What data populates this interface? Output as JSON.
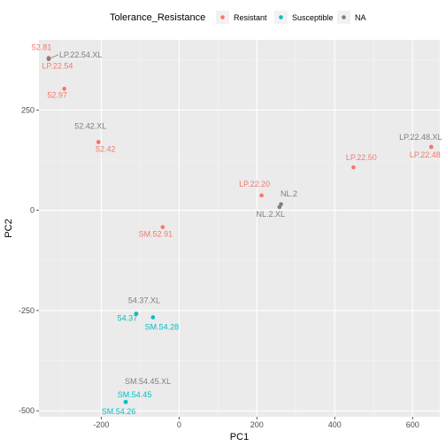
{
  "chart_data": {
    "type": "scatter",
    "title": "",
    "xlabel": "PC1",
    "ylabel": "PC2",
    "xlim": [
      -360,
      670
    ],
    "ylim": [
      -515,
      425
    ],
    "x_ticks": [
      -200,
      0,
      200,
      400,
      600
    ],
    "x_tick_labels": [
      "-200",
      "0",
      "200",
      "400",
      "600"
    ],
    "y_ticks": [
      -500,
      -250,
      0,
      250
    ],
    "y_tick_labels": [
      "-500",
      "-250",
      "0",
      "250"
    ],
    "grid": true,
    "legend": {
      "title": "Tolerance_Resistance",
      "position": "top",
      "entries": [
        {
          "label": "Resistant",
          "color": "#F8766D"
        },
        {
          "label": "Susceptible",
          "color": "#00BFC4"
        },
        {
          "label": "NA",
          "color": "#7F7F7F"
        }
      ]
    },
    "points": [
      {
        "label": "52.81",
        "group": "Resistant",
        "x": -335,
        "y": 380
      },
      {
        "label": "LP.22.54",
        "group": "Resistant",
        "x": -335,
        "y": 380
      },
      {
        "label": "LP.22.54.XL",
        "group": "NA",
        "x": -335,
        "y": 377
      },
      {
        "label": "52.97",
        "group": "Resistant",
        "x": -295,
        "y": 303
      },
      {
        "label": "52.42.XL",
        "group": "NA",
        "x": -207,
        "y": 170
      },
      {
        "label": "52.42",
        "group": "Resistant",
        "x": -207,
        "y": 170
      },
      {
        "label": "SM.52.91",
        "group": "Resistant",
        "x": -42,
        "y": -42
      },
      {
        "label": "LP.22.20",
        "group": "Resistant",
        "x": 212,
        "y": 37
      },
      {
        "label": "NL.2",
        "group": "NA",
        "x": 262,
        "y": 15
      },
      {
        "label": "NL.2.XL",
        "group": "NA",
        "x": 258,
        "y": 8
      },
      {
        "label": "LP.22.50",
        "group": "Resistant",
        "x": 448,
        "y": 107
      },
      {
        "label": "LP.22.48.XL",
        "group": "NA",
        "x": 648,
        "y": 158
      },
      {
        "label": "LP.22.48",
        "group": "Resistant",
        "x": 648,
        "y": 158
      },
      {
        "label": "54.37.XL",
        "group": "NA",
        "x": -110,
        "y": -258
      },
      {
        "label": "54.37",
        "group": "Susceptible",
        "x": -110,
        "y": -258
      },
      {
        "label": "SM.54.28",
        "group": "Susceptible",
        "x": -67,
        "y": -267
      },
      {
        "label": "SM.54.45.XL",
        "group": "NA",
        "x": -137,
        "y": -478
      },
      {
        "label": "SM.54.45",
        "group": "Susceptible",
        "x": -137,
        "y": -478
      },
      {
        "label": "SM.54.26",
        "group": "Susceptible",
        "x": -137,
        "y": -478
      }
    ]
  }
}
